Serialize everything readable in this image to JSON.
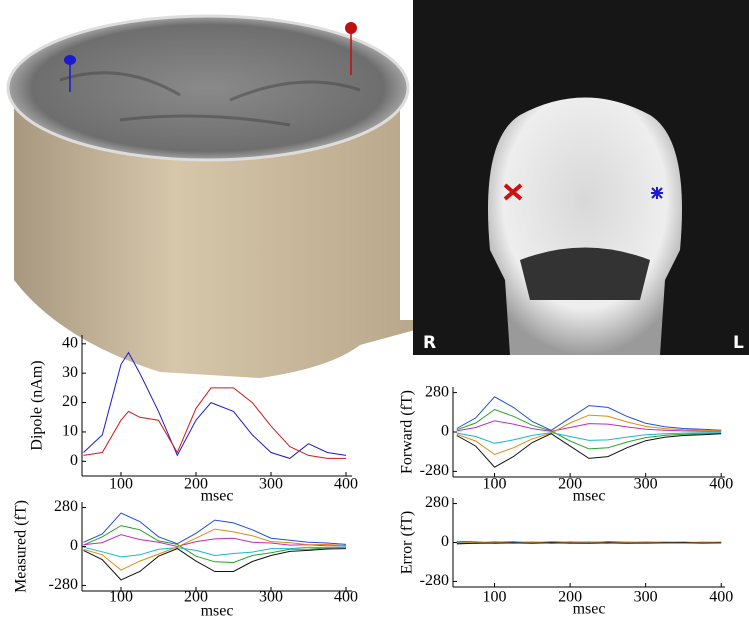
{
  "mri_labels": {
    "right": "R",
    "left": "L"
  },
  "chart_data": [
    {
      "type": "line",
      "ylabel": "Dipole (nAm)",
      "xlabel": "msec",
      "x": [
        50,
        75,
        100,
        110,
        125,
        150,
        175,
        200,
        220,
        250,
        275,
        300,
        325,
        350,
        375,
        400
      ],
      "xlim": [
        48,
        408
      ],
      "xticks": [
        100,
        200,
        300,
        400
      ],
      "ylim": [
        -5,
        43
      ],
      "yticks": [
        0,
        10,
        20,
        30,
        40
      ],
      "series": [
        {
          "color": "#1a1ad0",
          "values": [
            3,
            9,
            33,
            37,
            30,
            17,
            2,
            14,
            20,
            17,
            9,
            3,
            1,
            6,
            3,
            2
          ]
        },
        {
          "color": "#d01a1a",
          "values": [
            2,
            3,
            14,
            17,
            15,
            14,
            3,
            18,
            25,
            25,
            20,
            12,
            5,
            2,
            1,
            1
          ]
        }
      ]
    },
    {
      "type": "line",
      "ylabel": "Forward (fT)",
      "xlabel": "msec",
      "x": [
        50,
        75,
        100,
        125,
        150,
        175,
        200,
        225,
        250,
        275,
        300,
        325,
        350,
        375,
        400
      ],
      "xlim": [
        45,
        405
      ],
      "xticks": [
        100,
        200,
        300,
        400
      ],
      "ylim": [
        -320,
        320
      ],
      "yticks": [
        -280,
        0,
        280
      ],
      "series": [
        {
          "color": "#1f4fd8",
          "values": [
            25,
            100,
            250,
            175,
            75,
            12,
            100,
            188,
            175,
            112,
            62,
            38,
            25,
            20,
            12
          ]
        },
        {
          "color": "#2aa02a",
          "values": [
            16,
            64,
            160,
            112,
            48,
            8,
            -64,
            -120,
            -112,
            -72,
            -40,
            -24,
            -16,
            -13,
            -8
          ]
        },
        {
          "color": "#c02cc0",
          "values": [
            8,
            32,
            80,
            56,
            24,
            4,
            32,
            60,
            56,
            36,
            20,
            12,
            8,
            6,
            4
          ]
        },
        {
          "color": "#18b8c8",
          "values": [
            -8,
            -32,
            -80,
            -56,
            -24,
            -4,
            -32,
            -60,
            -56,
            -36,
            -20,
            -12,
            -8,
            -6,
            -4
          ]
        },
        {
          "color": "#e08a10",
          "values": [
            -16,
            -64,
            -160,
            -112,
            -48,
            -8,
            64,
            120,
            112,
            72,
            40,
            24,
            16,
            13,
            8
          ]
        },
        {
          "color": "#111111",
          "values": [
            -25,
            -100,
            -250,
            -175,
            -75,
            -12,
            -100,
            -188,
            -175,
            -112,
            -62,
            -38,
            -25,
            -20,
            -12
          ]
        }
      ]
    },
    {
      "type": "line",
      "ylabel": "Measured (fT)",
      "xlabel": "msec",
      "x": [
        50,
        75,
        100,
        125,
        150,
        175,
        200,
        225,
        250,
        275,
        300,
        325,
        350,
        375,
        400
      ],
      "xlim": [
        48,
        408
      ],
      "xticks": [
        100,
        200,
        300,
        400
      ],
      "ylim": [
        -320,
        320
      ],
      "yticks": [
        -280,
        0,
        280
      ],
      "series": [
        {
          "color": "#1f4fd8",
          "values": [
            30,
            90,
            240,
            180,
            70,
            20,
            95,
            190,
            170,
            120,
            60,
            45,
            30,
            25,
            15
          ]
        },
        {
          "color": "#2aa02a",
          "values": [
            10,
            70,
            150,
            120,
            40,
            15,
            -70,
            -110,
            -115,
            -65,
            -45,
            -20,
            -20,
            -10,
            -5
          ]
        },
        {
          "color": "#c02cc0",
          "values": [
            12,
            28,
            85,
            50,
            30,
            0,
            35,
            55,
            60,
            30,
            25,
            10,
            12,
            4,
            8
          ]
        },
        {
          "color": "#18b8c8",
          "values": [
            -5,
            -38,
            -75,
            -60,
            -20,
            -8,
            -28,
            -65,
            -50,
            -40,
            -15,
            -15,
            -5,
            -8,
            -2
          ]
        },
        {
          "color": "#e08a10",
          "values": [
            -20,
            -60,
            -170,
            -105,
            -55,
            -3,
            60,
            125,
            105,
            78,
            35,
            28,
            12,
            15,
            5
          ]
        },
        {
          "color": "#111111",
          "values": [
            -28,
            -95,
            -240,
            -180,
            -70,
            -15,
            -105,
            -180,
            -180,
            -108,
            -65,
            -35,
            -28,
            -18,
            -15
          ]
        }
      ]
    },
    {
      "type": "line",
      "ylabel": "Error (fT)",
      "xlabel": "msec",
      "x": [
        50,
        75,
        100,
        125,
        150,
        175,
        200,
        225,
        250,
        275,
        300,
        325,
        350,
        375,
        400
      ],
      "xlim": [
        45,
        405
      ],
      "xticks": [
        100,
        200,
        300,
        400
      ],
      "ylim": [
        -320,
        320
      ],
      "yticks": [
        -280,
        0,
        280
      ],
      "series": [
        {
          "color": "#1f4fd8",
          "values": [
            8,
            5,
            -4,
            3,
            -2,
            4,
            2,
            -3,
            5,
            2,
            -2,
            3,
            1,
            -2,
            2
          ]
        },
        {
          "color": "#2aa02a",
          "values": [
            -6,
            -3,
            5,
            -2,
            3,
            -5,
            -1,
            4,
            -3,
            -2,
            2,
            -1,
            -2,
            1,
            -1
          ]
        },
        {
          "color": "#c02cc0",
          "values": [
            3,
            -5,
            2,
            6,
            -3,
            2,
            -4,
            3,
            1,
            -3,
            4,
            -2,
            3,
            -1,
            2
          ]
        },
        {
          "color": "#18b8c8",
          "values": [
            -3,
            4,
            -6,
            -2,
            4,
            -3,
            5,
            -2,
            -4,
            3,
            -1,
            2,
            -3,
            2,
            -1
          ]
        },
        {
          "color": "#e08a10",
          "values": [
            5,
            -2,
            3,
            -4,
            1,
            -2,
            3,
            4,
            -2,
            1,
            3,
            -1,
            -2,
            3,
            1
          ]
        },
        {
          "color": "#111111",
          "values": [
            -10,
            -6,
            -4,
            -3,
            -5,
            -2,
            -4,
            -6,
            -3,
            -5,
            -4,
            -3,
            -2,
            -4,
            -3
          ]
        }
      ]
    }
  ]
}
